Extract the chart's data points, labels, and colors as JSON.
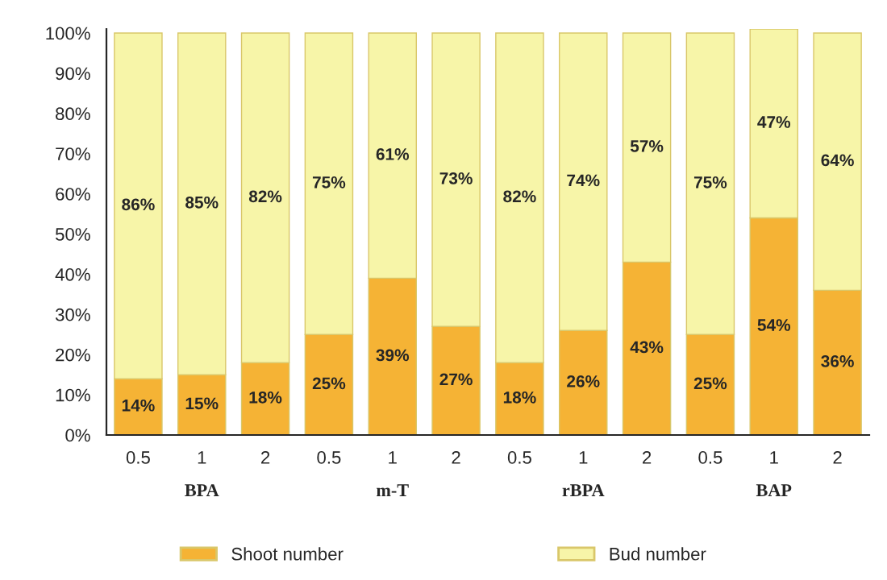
{
  "chart_data": {
    "type": "bar",
    "stacked": true,
    "categories": [
      "0.5",
      "1",
      "2",
      "0.5",
      "1",
      "2",
      "0.5",
      "1",
      "2",
      "0.5",
      "1",
      "2"
    ],
    "series": [
      {
        "name": "Shoot number",
        "color": "#f5b335",
        "values": [
          14,
          15,
          18,
          25,
          39,
          27,
          18,
          26,
          43,
          25,
          54,
          36
        ],
        "value_labels": [
          "14%",
          "15%",
          "18%",
          "25%",
          "39%",
          "27%",
          "18%",
          "26%",
          "43%",
          "25%",
          "54%",
          "36%"
        ]
      },
      {
        "name": "Bud number",
        "color": "#f7f5a8",
        "values": [
          86,
          85,
          82,
          75,
          61,
          73,
          82,
          74,
          57,
          75,
          47,
          64
        ],
        "value_labels": [
          "86%",
          "85%",
          "82%",
          "75%",
          "61%",
          "73%",
          "82%",
          "74%",
          "57%",
          "75%",
          "47%",
          "64%"
        ]
      }
    ],
    "annotations": [
      "BPA",
      "m-T",
      "rBPA",
      "BAP"
    ],
    "ylim": [
      0,
      101
    ],
    "yticks": [
      {
        "value": 0,
        "label": "0%"
      },
      {
        "value": 10,
        "label": "10%"
      },
      {
        "value": 20,
        "label": "20%"
      },
      {
        "value": 30,
        "label": "30%"
      },
      {
        "value": 40,
        "label": "40%"
      },
      {
        "value": 50,
        "label": "50%"
      },
      {
        "value": 60,
        "label": "60%"
      },
      {
        "value": 70,
        "label": "70%"
      },
      {
        "value": 80,
        "label": "80%"
      },
      {
        "value": 90,
        "label": "90%"
      },
      {
        "value": 100,
        "label": "100%"
      }
    ],
    "grid": false,
    "legend": "bottom"
  }
}
